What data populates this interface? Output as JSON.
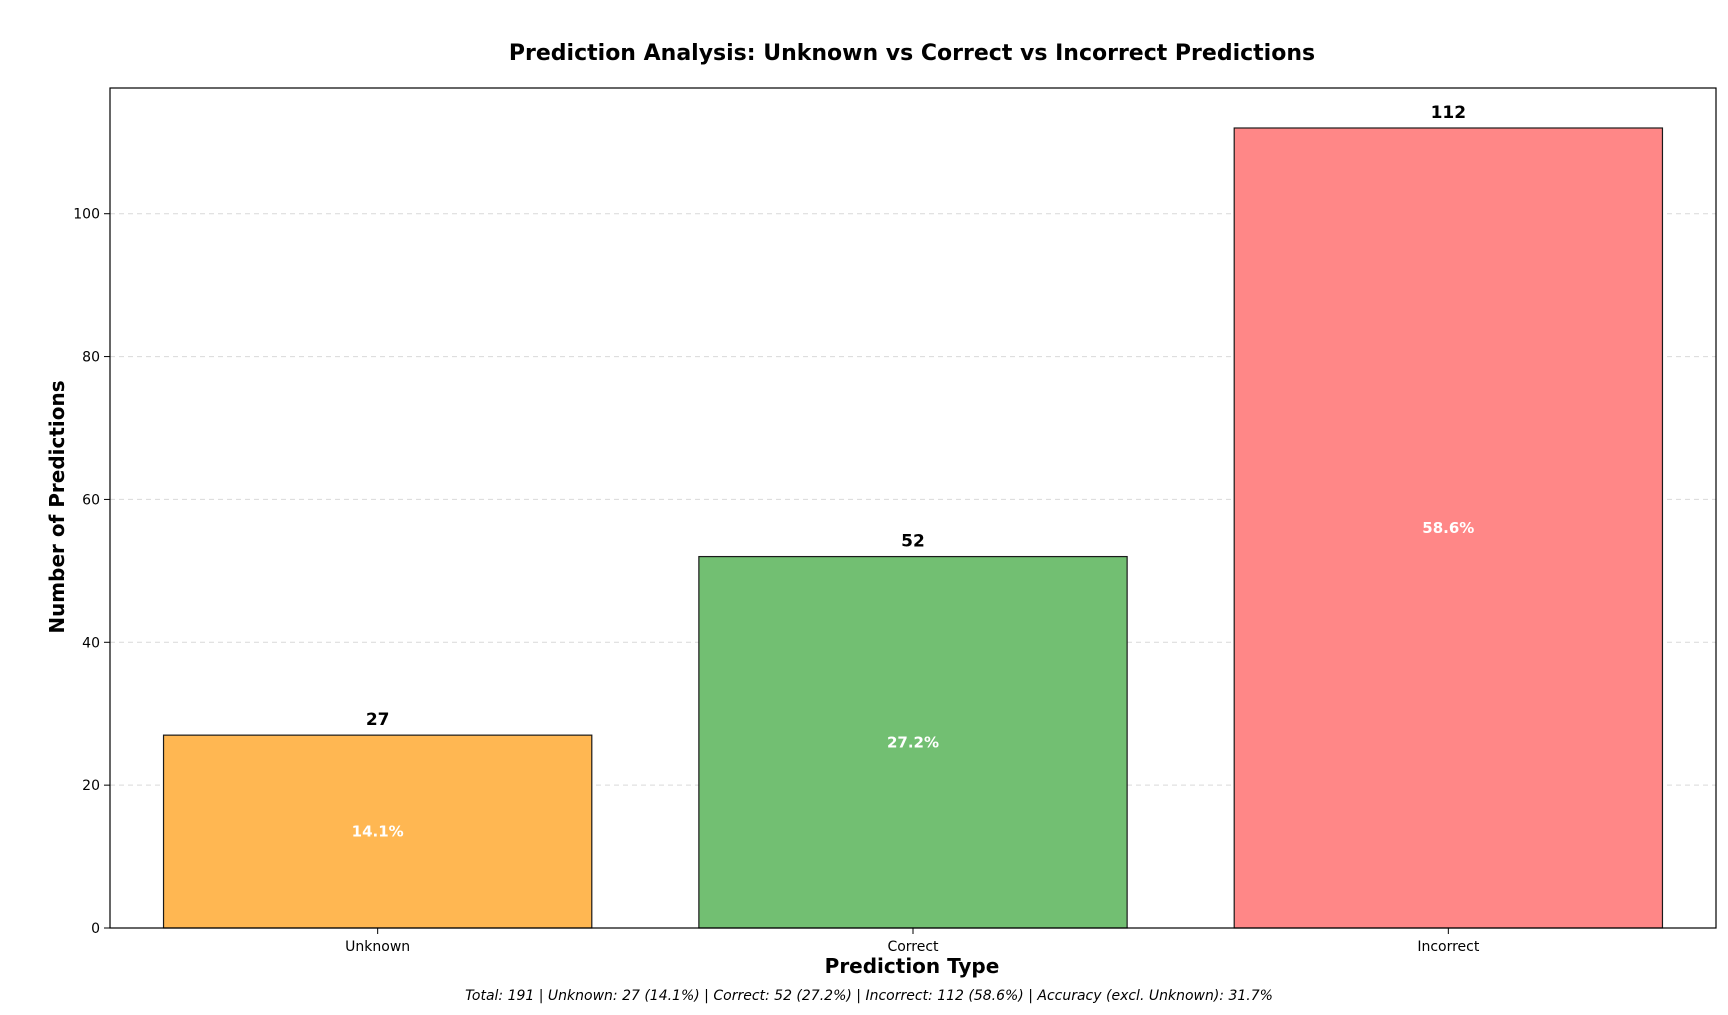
{
  "chart_data": {
    "type": "bar",
    "title": "Prediction Analysis: Unknown vs Correct vs Incorrect Predictions",
    "xlabel": "Prediction Type",
    "ylabel": "Number of Predictions",
    "categories": [
      "Unknown",
      "Correct",
      "Incorrect"
    ],
    "values": [
      27,
      52,
      112
    ],
    "value_labels": [
      "27",
      "52",
      "112"
    ],
    "percent_labels": [
      "14.1%",
      "27.2%",
      "58.6%"
    ],
    "colors": [
      "#ffb752",
      "#72bf72",
      "#ff8787"
    ],
    "ylim": [
      0,
      117.6
    ],
    "yticks": [
      0,
      20,
      40,
      60,
      80,
      100
    ],
    "grid": true,
    "footer": "Total: 191 | Unknown: 27 (14.1%) | Correct: 52 (27.2%) | Incorrect: 112 (58.6%) | Accuracy (excl. Unknown): 31.7%"
  }
}
